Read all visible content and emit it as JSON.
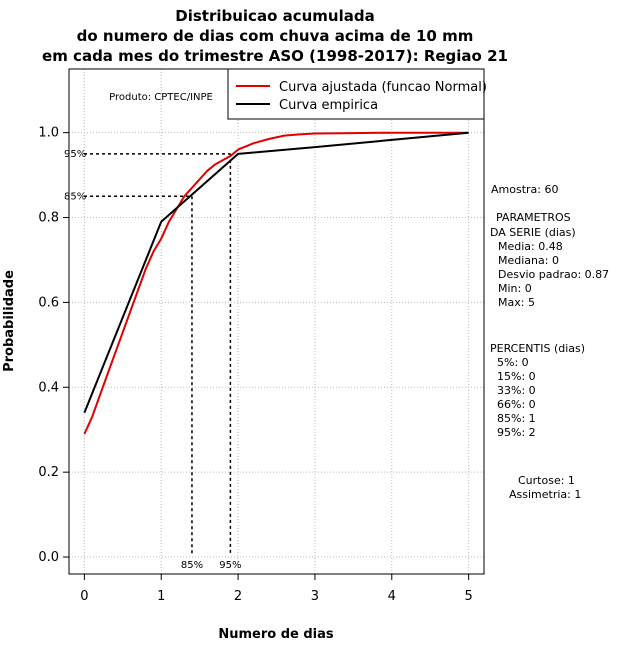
{
  "chart_data": {
    "type": "line",
    "title": [
      "Distribuicao acumulada",
      "do numero de dias com chuva acima de 10 mm",
      "em cada mes do trimestre ASO (1998-2017): Regiao 21"
    ],
    "xlabel": "Numero de dias",
    "ylabel": "Probabilidade",
    "xlim": [
      -0.2,
      5.2
    ],
    "ylim": [
      -0.04,
      1.15
    ],
    "x_ticks": [
      0,
      1,
      2,
      3,
      4,
      5
    ],
    "y_ticks": [
      0.0,
      0.2,
      0.4,
      0.6,
      0.8,
      1.0
    ],
    "grid": true,
    "product_label": "Produto: CPTEC/INPE",
    "legend": {
      "position": "top-right",
      "entries": [
        {
          "label": "Curva ajustada (funcao Normal)",
          "color": "#e00000"
        },
        {
          "label": "Curva empirica",
          "color": "#000000"
        }
      ]
    },
    "series": [
      {
        "name": "Curva ajustada (funcao Normal)",
        "color": "#e00000",
        "x": [
          0,
          0.1,
          0.2,
          0.3,
          0.4,
          0.5,
          0.6,
          0.7,
          0.8,
          0.9,
          1.0,
          1.1,
          1.2,
          1.3,
          1.4,
          1.5,
          1.6,
          1.7,
          1.8,
          1.9,
          2.0,
          2.2,
          2.4,
          2.6,
          2.8,
          3.0,
          3.5,
          4.0,
          4.5,
          5.0
        ],
        "y": [
          0.29,
          0.33,
          0.38,
          0.43,
          0.48,
          0.53,
          0.58,
          0.63,
          0.68,
          0.72,
          0.75,
          0.79,
          0.82,
          0.85,
          0.87,
          0.89,
          0.91,
          0.925,
          0.935,
          0.945,
          0.96,
          0.975,
          0.985,
          0.993,
          0.996,
          0.998,
          0.999,
          1.0,
          1.0,
          1.0
        ]
      },
      {
        "name": "Curva empirica",
        "color": "#000000",
        "x": [
          0,
          1,
          2,
          3,
          4,
          5
        ],
        "y": [
          0.34,
          0.79,
          0.95,
          0.966,
          0.983,
          1.0
        ]
      }
    ],
    "reference_lines": [
      {
        "label": "95%",
        "x": 1.9,
        "y": 0.95
      },
      {
        "label": "85%",
        "x": 1.4,
        "y": 0.85
      }
    ],
    "annotations": {
      "amostra": "Amostra: 60",
      "parametros": [
        "PARAMETROS",
        "DA SERIE (dias)",
        "Media: 0.48",
        "Mediana: 0",
        "Desvio padrao: 0.87",
        "Min: 0",
        "Max: 5"
      ],
      "percentis": [
        "PERCENTIS (dias)",
        "5%: 0",
        "15%: 0",
        "33%: 0",
        "66%: 0",
        "85%: 1",
        "95%: 2"
      ],
      "forma": [
        "Curtose: 1",
        "Assimetria: 1"
      ]
    }
  }
}
